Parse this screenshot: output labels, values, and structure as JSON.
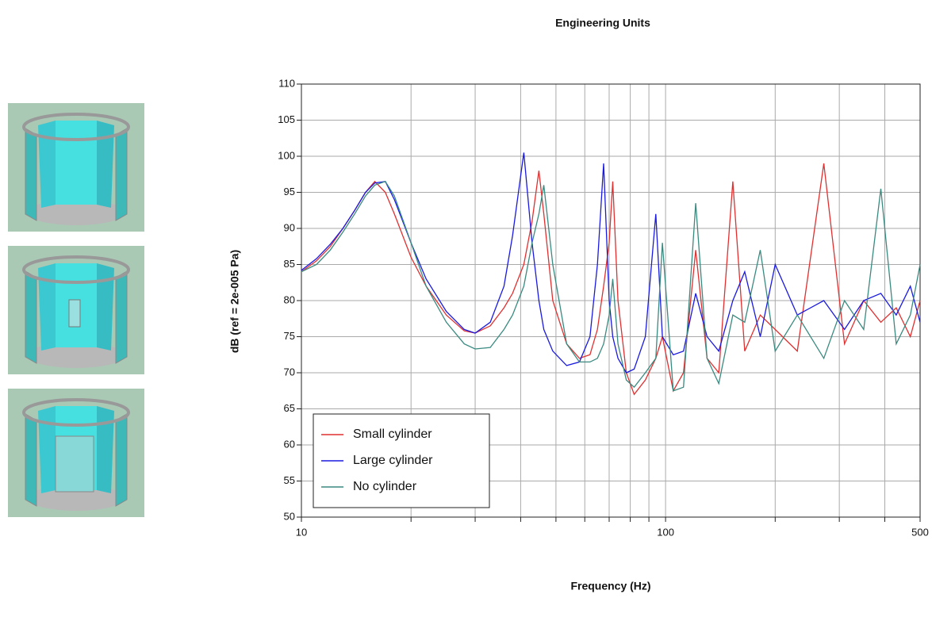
{
  "chart_data": {
    "type": "line",
    "title": "Engineering Units",
    "x_label": "Frequency (Hz)",
    "y_label": "dB (ref = 2e-005 Pa)",
    "x_scale": "log",
    "grid": true,
    "legend_loc": "lower left",
    "xlim": [
      10,
      500
    ],
    "xticks": [
      10,
      100,
      500
    ],
    "x_minor_ticks": [
      20,
      30,
      40,
      50,
      60,
      70,
      80,
      90,
      200,
      300,
      400
    ],
    "ylim": [
      50,
      110
    ],
    "yticks": [
      50,
      55,
      60,
      65,
      70,
      75,
      80,
      85,
      90,
      95,
      100,
      105,
      110
    ],
    "x": [
      10,
      11,
      12,
      13,
      14,
      15,
      15.9,
      17,
      18,
      20,
      22,
      25,
      28,
      30,
      33,
      36,
      38,
      40.8,
      43,
      44.9,
      46.3,
      49,
      53.5,
      58,
      62,
      65,
      67.6,
      70,
      71.6,
      74,
      78,
      82,
      88,
      94,
      98,
      105,
      112,
      121,
      130,
      140,
      153,
      165,
      182,
      200,
      230,
      272,
      310,
      350,
      390,
      430,
      470,
      500
    ],
    "series": [
      {
        "name": "Small cylinder",
        "color": "#e03030",
        "values": [
          84,
          85.5,
          87.5,
          90,
          92.5,
          95,
          96.5,
          95,
          92,
          86,
          82,
          78,
          75.8,
          75.5,
          76.5,
          79,
          81,
          85,
          91,
          98,
          92,
          80,
          74,
          72,
          72.5,
          76,
          82,
          88,
          96.5,
          80,
          70,
          67,
          69,
          72,
          75,
          67.5,
          70,
          87,
          72,
          70,
          96.5,
          73,
          78,
          76,
          73,
          99,
          74,
          80,
          77,
          79,
          75,
          80
        ]
      },
      {
        "name": "Large cylinder",
        "color": "#1a1ae0",
        "values": [
          84.2,
          85.8,
          87.8,
          90,
          92.5,
          95,
          96.3,
          96.5,
          94,
          88,
          83,
          78.5,
          76,
          75.5,
          77,
          82,
          89,
          100.5,
          88,
          80,
          76,
          73,
          71,
          71.5,
          75,
          85,
          99,
          80,
          75,
          72,
          70,
          70.5,
          75,
          92,
          75,
          72.5,
          73,
          81,
          75,
          73,
          80,
          84,
          75,
          85,
          78,
          80,
          76,
          80,
          81,
          78,
          82,
          77
        ]
      },
      {
        "name": "No cylinder",
        "color": "#3a8a80",
        "values": [
          84,
          85,
          87,
          89.5,
          92,
          94.5,
          96,
          96.5,
          94.5,
          88,
          82,
          77,
          74,
          73.3,
          73.5,
          76,
          78,
          82,
          88,
          92,
          96,
          85,
          74,
          71.5,
          71.5,
          72,
          74,
          78,
          83,
          74,
          69,
          68,
          70,
          72,
          88,
          67.5,
          68,
          93.5,
          72,
          68.5,
          78,
          77,
          87,
          73,
          78,
          72,
          80,
          76,
          95.5,
          74,
          78,
          85
        ]
      }
    ]
  }
}
